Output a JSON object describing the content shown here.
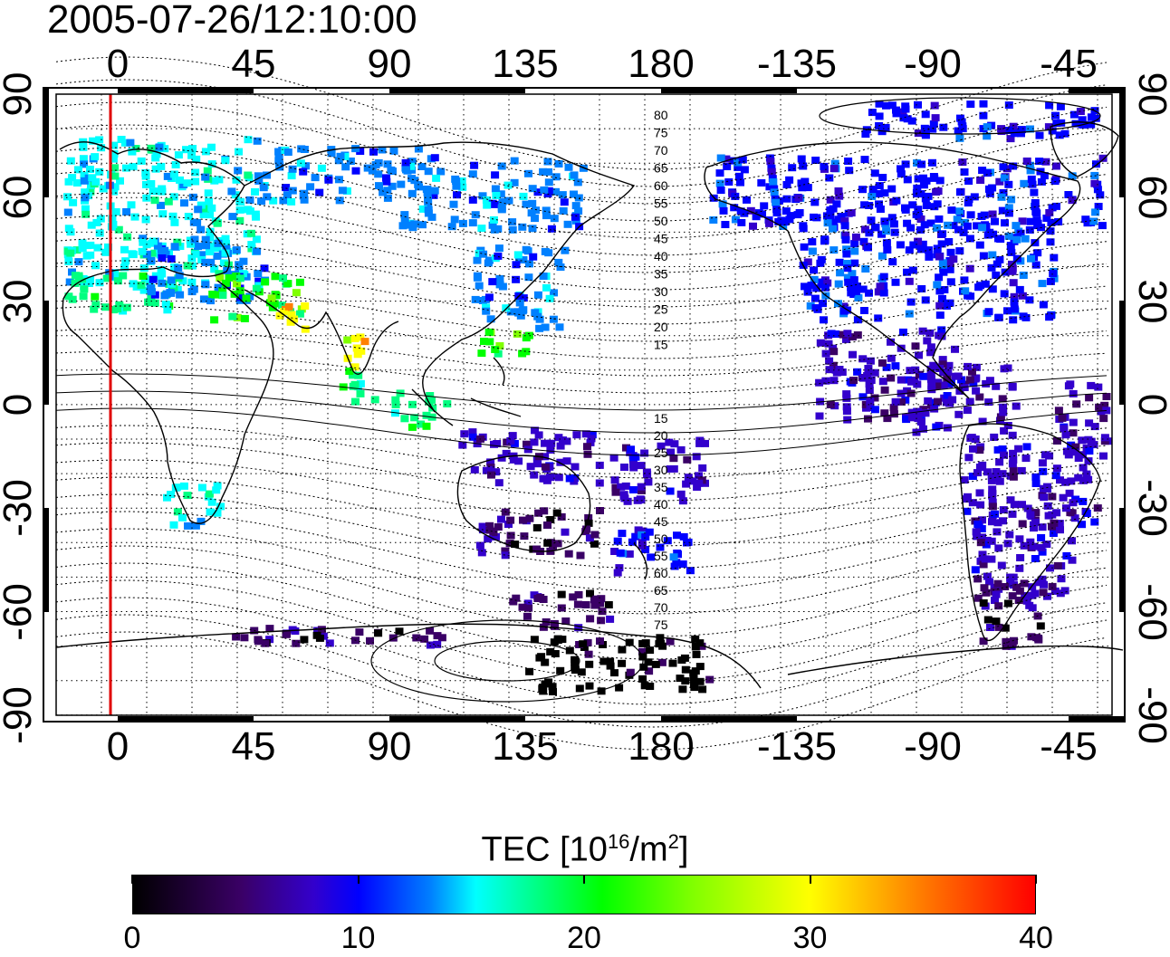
{
  "timestamp": "2005-07-26/12:10:00",
  "colorbar": {
    "title_prefix": "TEC  [10",
    "title_exp": "16",
    "title_unit": "/m",
    "title_exp2": "2",
    "title_suffix": "]",
    "ticks": [
      "0",
      "10",
      "20",
      "30",
      "40"
    ]
  },
  "axes": {
    "lon_ticks": [
      "0",
      "45",
      "90",
      "135",
      "180",
      "-135",
      "-90",
      "-45"
    ],
    "lat_ticks": [
      "90",
      "60",
      "30",
      "0",
      "-30",
      "-60",
      "-90"
    ]
  },
  "contour_labels": {
    "north": [
      "80",
      "75",
      "70",
      "65",
      "60",
      "55",
      "50",
      "45",
      "40",
      "35",
      "30",
      "25",
      "20",
      "15"
    ],
    "south": [
      "15",
      "20",
      "25",
      "30",
      "35",
      "40",
      "45",
      "50",
      "55",
      "60",
      "65",
      "70",
      "75"
    ]
  },
  "colors": {
    "terminator": "#e00000",
    "colormap": [
      "#000000",
      "#3a0066",
      "#3300cc",
      "#0000ff",
      "#0080ff",
      "#00ffff",
      "#00ff80",
      "#00ff00",
      "#80ff00",
      "#ffff00",
      "#ff8000",
      "#ff0000"
    ]
  }
}
